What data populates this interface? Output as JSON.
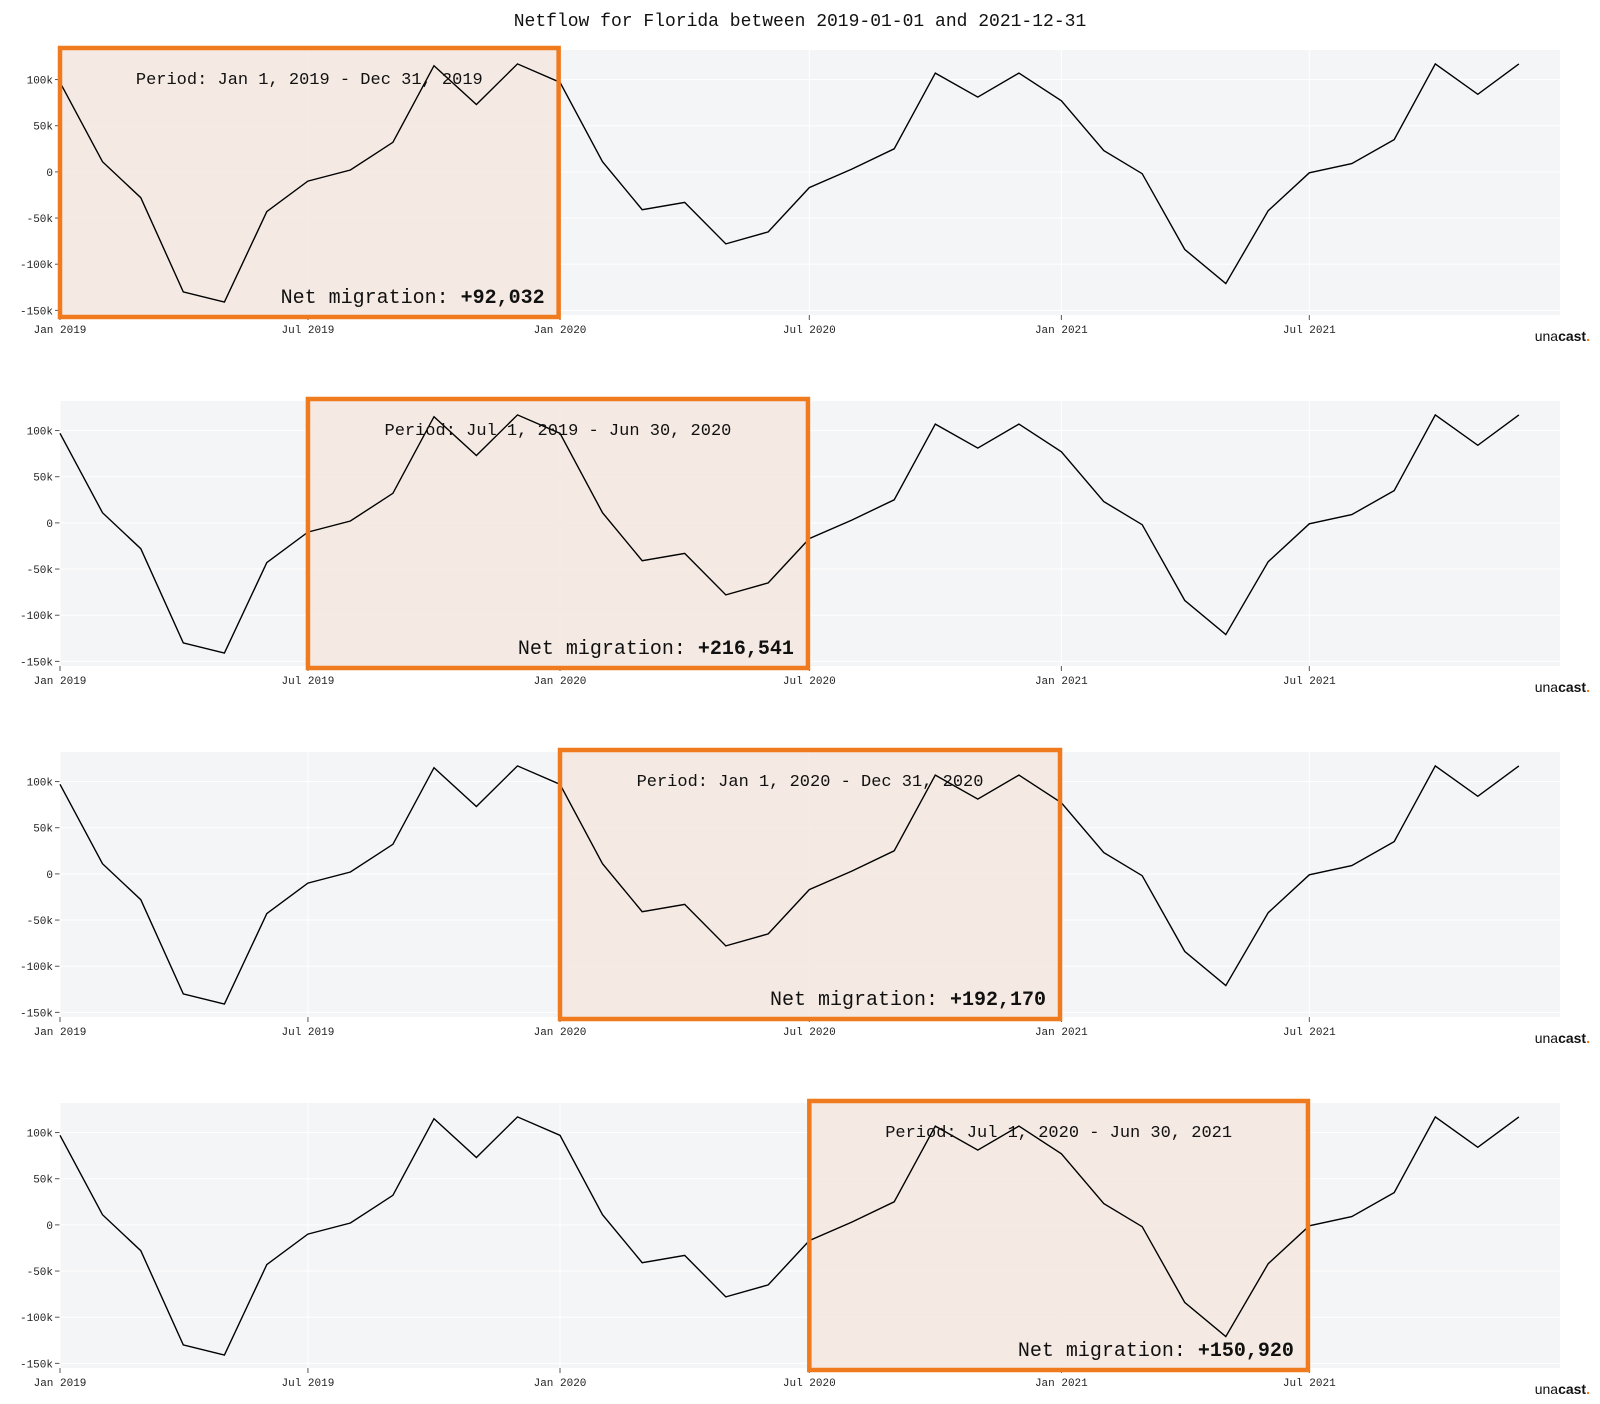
{
  "title": "Netflow for Florida between 2019-01-01 and 2021-12-31",
  "brand": {
    "text_main": "una",
    "text_bold": "cast",
    "text_dot": ".",
    "accent": "#f07a1e"
  },
  "colors": {
    "plot_bg": "#f4f5f7",
    "grid": "#ffffff",
    "line": "#000000",
    "highlight_border": "#f07a1e",
    "highlight_fill": "#f5e8df"
  },
  "net_migration_prefix": "Net migration: ",
  "chart_data": [
    {
      "type": "line",
      "x_tick_labels": [
        "Jan 2019",
        "Jul 2019",
        "Jan 2020",
        "Jul 2020",
        "Jan 2021",
        "Jul 2021"
      ],
      "y_tick_labels": [
        "100k",
        "50k",
        "0",
        "-50k",
        "-100k",
        "-150k"
      ],
      "y_ticks": [
        100000,
        50000,
        0,
        -50000,
        -100000,
        -150000
      ],
      "ylim": [
        -155000,
        132000
      ],
      "xlim": [
        "2019-01-01",
        "2021-12-31"
      ],
      "grid": true,
      "series": [
        {
          "x": [
            "2019-01-01",
            "2019-02-01",
            "2019-03-01",
            "2019-04-01",
            "2019-05-01",
            "2019-06-01",
            "2019-07-01",
            "2019-08-01",
            "2019-09-01",
            "2019-10-01",
            "2019-11-01",
            "2019-12-01",
            "2020-01-01",
            "2020-02-01",
            "2020-03-01",
            "2020-04-01",
            "2020-05-01",
            "2020-06-01",
            "2020-07-01",
            "2020-08-01",
            "2020-09-01",
            "2020-10-01",
            "2020-11-01",
            "2020-12-01",
            "2021-01-01",
            "2021-02-01",
            "2021-03-01",
            "2021-04-01",
            "2021-05-01",
            "2021-06-01",
            "2021-07-01",
            "2021-08-01",
            "2021-09-01",
            "2021-10-01",
            "2021-11-01",
            "2021-12-01"
          ],
          "y": [
            97000,
            11000,
            -28000,
            -130000,
            -141000,
            -43000,
            -10000,
            2000,
            32000,
            115000,
            73000,
            117000,
            97000,
            11000,
            -41000,
            -33000,
            -78000,
            -65000,
            -17000,
            3000,
            25000,
            107000,
            81000,
            107000,
            77000,
            23000,
            -2000,
            -84000,
            -121000,
            -42000,
            -1000,
            9000,
            35000,
            117000,
            84000,
            117000
          ]
        }
      ],
      "highlight": {
        "start": "2019-01-01",
        "end": "2019-12-31",
        "period_label": "Period: Jan 1, 2019 - Dec 31, 2019",
        "net_migration": "+92,032"
      }
    },
    {
      "type": "line",
      "x_tick_labels": [
        "Jan 2019",
        "Jul 2019",
        "Jan 2020",
        "Jul 2020",
        "Jan 2021",
        "Jul 2021"
      ],
      "y_tick_labels": [
        "100k",
        "50k",
        "0",
        "-50k",
        "-100k",
        "-150k"
      ],
      "y_ticks": [
        100000,
        50000,
        0,
        -50000,
        -100000,
        -150000
      ],
      "ylim": [
        -155000,
        132000
      ],
      "xlim": [
        "2019-01-01",
        "2021-12-31"
      ],
      "grid": true,
      "series": [
        {
          "x": [
            "2019-01-01",
            "2019-02-01",
            "2019-03-01",
            "2019-04-01",
            "2019-05-01",
            "2019-06-01",
            "2019-07-01",
            "2019-08-01",
            "2019-09-01",
            "2019-10-01",
            "2019-11-01",
            "2019-12-01",
            "2020-01-01",
            "2020-02-01",
            "2020-03-01",
            "2020-04-01",
            "2020-05-01",
            "2020-06-01",
            "2020-07-01",
            "2020-08-01",
            "2020-09-01",
            "2020-10-01",
            "2020-11-01",
            "2020-12-01",
            "2021-01-01",
            "2021-02-01",
            "2021-03-01",
            "2021-04-01",
            "2021-05-01",
            "2021-06-01",
            "2021-07-01",
            "2021-08-01",
            "2021-09-01",
            "2021-10-01",
            "2021-11-01",
            "2021-12-01"
          ],
          "y": [
            97000,
            11000,
            -28000,
            -130000,
            -141000,
            -43000,
            -10000,
            2000,
            32000,
            115000,
            73000,
            117000,
            97000,
            11000,
            -41000,
            -33000,
            -78000,
            -65000,
            -17000,
            3000,
            25000,
            107000,
            81000,
            107000,
            77000,
            23000,
            -2000,
            -84000,
            -121000,
            -42000,
            -1000,
            9000,
            35000,
            117000,
            84000,
            117000
          ]
        }
      ],
      "highlight": {
        "start": "2019-07-01",
        "end": "2020-06-30",
        "period_label": "Period: Jul 1, 2019 - Jun 30, 2020",
        "net_migration": "+216,541"
      }
    },
    {
      "type": "line",
      "x_tick_labels": [
        "Jan 2019",
        "Jul 2019",
        "Jan 2020",
        "Jul 2020",
        "Jan 2021",
        "Jul 2021"
      ],
      "y_tick_labels": [
        "100k",
        "50k",
        "0",
        "-50k",
        "-100k",
        "-150k"
      ],
      "y_ticks": [
        100000,
        50000,
        0,
        -50000,
        -100000,
        -150000
      ],
      "ylim": [
        -155000,
        132000
      ],
      "xlim": [
        "2019-01-01",
        "2021-12-31"
      ],
      "grid": true,
      "series": [
        {
          "x": [
            "2019-01-01",
            "2019-02-01",
            "2019-03-01",
            "2019-04-01",
            "2019-05-01",
            "2019-06-01",
            "2019-07-01",
            "2019-08-01",
            "2019-09-01",
            "2019-10-01",
            "2019-11-01",
            "2019-12-01",
            "2020-01-01",
            "2020-02-01",
            "2020-03-01",
            "2020-04-01",
            "2020-05-01",
            "2020-06-01",
            "2020-07-01",
            "2020-08-01",
            "2020-09-01",
            "2020-10-01",
            "2020-11-01",
            "2020-12-01",
            "2021-01-01",
            "2021-02-01",
            "2021-03-01",
            "2021-04-01",
            "2021-05-01",
            "2021-06-01",
            "2021-07-01",
            "2021-08-01",
            "2021-09-01",
            "2021-10-01",
            "2021-11-01",
            "2021-12-01"
          ],
          "y": [
            97000,
            11000,
            -28000,
            -130000,
            -141000,
            -43000,
            -10000,
            2000,
            32000,
            115000,
            73000,
            117000,
            97000,
            11000,
            -41000,
            -33000,
            -78000,
            -65000,
            -17000,
            3000,
            25000,
            107000,
            81000,
            107000,
            77000,
            23000,
            -2000,
            -84000,
            -121000,
            -42000,
            -1000,
            9000,
            35000,
            117000,
            84000,
            117000
          ]
        }
      ],
      "highlight": {
        "start": "2020-01-01",
        "end": "2020-12-31",
        "period_label": "Period: Jan 1, 2020 - Dec 31, 2020",
        "net_migration": "+192,170"
      }
    },
    {
      "type": "line",
      "x_tick_labels": [
        "Jan 2019",
        "Jul 2019",
        "Jan 2020",
        "Jul 2020",
        "Jan 2021",
        "Jul 2021"
      ],
      "y_tick_labels": [
        "100k",
        "50k",
        "0",
        "-50k",
        "-100k",
        "-150k"
      ],
      "y_ticks": [
        100000,
        50000,
        0,
        -50000,
        -100000,
        -150000
      ],
      "ylim": [
        -155000,
        132000
      ],
      "xlim": [
        "2019-01-01",
        "2021-12-31"
      ],
      "grid": true,
      "series": [
        {
          "x": [
            "2019-01-01",
            "2019-02-01",
            "2019-03-01",
            "2019-04-01",
            "2019-05-01",
            "2019-06-01",
            "2019-07-01",
            "2019-08-01",
            "2019-09-01",
            "2019-10-01",
            "2019-11-01",
            "2019-12-01",
            "2020-01-01",
            "2020-02-01",
            "2020-03-01",
            "2020-04-01",
            "2020-05-01",
            "2020-06-01",
            "2020-07-01",
            "2020-08-01",
            "2020-09-01",
            "2020-10-01",
            "2020-11-01",
            "2020-12-01",
            "2021-01-01",
            "2021-02-01",
            "2021-03-01",
            "2021-04-01",
            "2021-05-01",
            "2021-06-01",
            "2021-07-01",
            "2021-08-01",
            "2021-09-01",
            "2021-10-01",
            "2021-11-01",
            "2021-12-01"
          ],
          "y": [
            97000,
            11000,
            -28000,
            -130000,
            -141000,
            -43000,
            -10000,
            2000,
            32000,
            115000,
            73000,
            117000,
            97000,
            11000,
            -41000,
            -33000,
            -78000,
            -65000,
            -17000,
            3000,
            25000,
            107000,
            81000,
            107000,
            77000,
            23000,
            -2000,
            -84000,
            -121000,
            -42000,
            -1000,
            9000,
            35000,
            117000,
            84000,
            117000
          ]
        }
      ],
      "highlight": {
        "start": "2020-07-01",
        "end": "2021-06-30",
        "period_label": "Period: Jul 1, 2020 - Jun 30, 2021",
        "net_migration": "+150,920"
      }
    }
  ]
}
